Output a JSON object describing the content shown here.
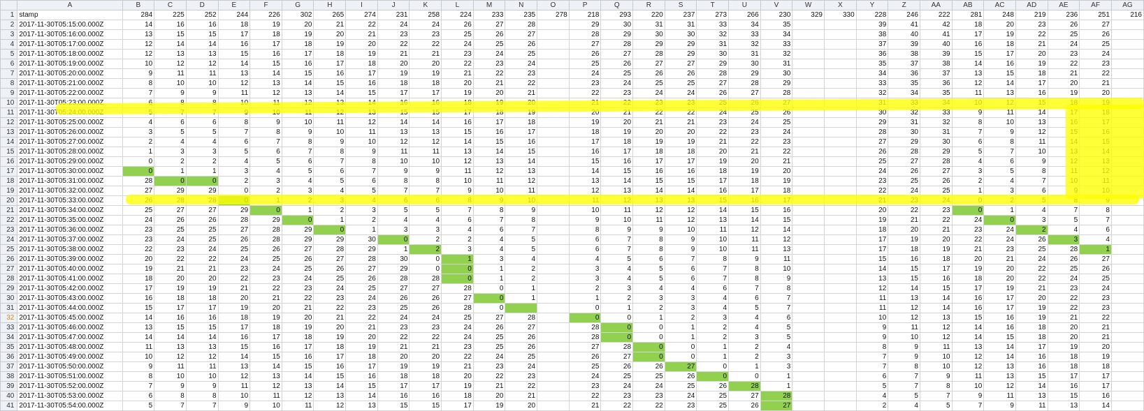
{
  "colors": {
    "highlight": "#ffff00",
    "green": "#92d050",
    "header_bg": "#eef1f5",
    "grid": "#d4d4d4",
    "selected_row_num": "#d28a1b"
  },
  "columns": [
    "A",
    "B",
    "C",
    "D",
    "E",
    "F",
    "G",
    "H",
    "I",
    "J",
    "K",
    "L",
    "M",
    "N",
    "O",
    "P",
    "Q",
    "R",
    "S",
    "T",
    "U",
    "V",
    "W",
    "X",
    "Y",
    "Z",
    "AA",
    "AB",
    "AC",
    "AD",
    "AE",
    "AF",
    "AG"
  ],
  "selected_row": 32,
  "rows": [
    [
      "stamp",
      "284",
      "225",
      "252",
      "244",
      "226",
      "302",
      "265",
      "274",
      "231",
      "258",
      "224",
      "233",
      "235",
      "278",
      "218",
      "293",
      "220",
      "237",
      "273",
      "266",
      "230",
      "329",
      "330",
      "228",
      "246",
      "222",
      "281",
      "248",
      "219",
      "236",
      "251",
      "216"
    ],
    [
      "2017-11-30T05:15:00.000Z",
      "14",
      "16",
      "16",
      "18",
      "19",
      "20",
      "21",
      "22",
      "24",
      "24",
      "26",
      "27",
      "28",
      "",
      "29",
      "30",
      "31",
      "31",
      "33",
      "34",
      "35",
      "",
      "",
      "39",
      "41",
      "42",
      "18",
      "20",
      "23",
      "26",
      "27",
      ""
    ],
    [
      "2017-11-30T05:16:00.000Z",
      "13",
      "15",
      "15",
      "17",
      "18",
      "19",
      "20",
      "21",
      "23",
      "23",
      "25",
      "26",
      "27",
      "",
      "28",
      "29",
      "30",
      "30",
      "32",
      "33",
      "34",
      "",
      "",
      "38",
      "40",
      "41",
      "17",
      "19",
      "22",
      "25",
      "26",
      ""
    ],
    [
      "2017-11-30T05:17:00.000Z",
      "12",
      "14",
      "14",
      "16",
      "17",
      "18",
      "19",
      "20",
      "22",
      "22",
      "24",
      "25",
      "26",
      "",
      "27",
      "28",
      "29",
      "29",
      "31",
      "32",
      "33",
      "",
      "",
      "37",
      "39",
      "40",
      "16",
      "18",
      "21",
      "24",
      "25",
      ""
    ],
    [
      "2017-11-30T05:18:00.000Z",
      "12",
      "13",
      "13",
      "15",
      "16",
      "17",
      "18",
      "19",
      "21",
      "21",
      "23",
      "24",
      "25",
      "",
      "26",
      "27",
      "28",
      "29",
      "30",
      "31",
      "32",
      "",
      "",
      "36",
      "38",
      "39",
      "15",
      "17",
      "20",
      "23",
      "24",
      ""
    ],
    [
      "2017-11-30T05:19:00.000Z",
      "10",
      "12",
      "12",
      "14",
      "15",
      "16",
      "17",
      "18",
      "20",
      "20",
      "22",
      "23",
      "24",
      "",
      "25",
      "26",
      "27",
      "27",
      "29",
      "30",
      "31",
      "",
      "",
      "35",
      "37",
      "38",
      "14",
      "16",
      "19",
      "22",
      "23",
      ""
    ],
    [
      "2017-11-30T05:20:00.000Z",
      "9",
      "11",
      "11",
      "13",
      "14",
      "15",
      "16",
      "17",
      "19",
      "19",
      "21",
      "22",
      "23",
      "",
      "24",
      "25",
      "26",
      "26",
      "28",
      "29",
      "30",
      "",
      "",
      "34",
      "36",
      "37",
      "13",
      "15",
      "18",
      "21",
      "22",
      ""
    ],
    [
      "2017-11-30T05:21:00.000Z",
      "8",
      "10",
      "10",
      "12",
      "13",
      "14",
      "15",
      "16",
      "18",
      "18",
      "20",
      "21",
      "22",
      "",
      "23",
      "24",
      "25",
      "25",
      "27",
      "28",
      "29",
      "",
      "",
      "33",
      "35",
      "36",
      "12",
      "14",
      "17",
      "20",
      "21",
      ""
    ],
    [
      "2017-11-30T05:22:00.000Z",
      "7",
      "9",
      "9",
      "11",
      "12",
      "13",
      "14",
      "15",
      "17",
      "17",
      "19",
      "20",
      "21",
      "",
      "22",
      "23",
      "24",
      "24",
      "26",
      "27",
      "28",
      "",
      "",
      "32",
      "34",
      "35",
      "11",
      "13",
      "16",
      "19",
      "20",
      ""
    ],
    [
      "2017-11-30T05:23:00.000Z",
      "6",
      "8",
      "8",
      "10",
      "11",
      "12",
      "13",
      "14",
      "16",
      "16",
      "18",
      "19",
      "20",
      "",
      "21",
      "22",
      "23",
      "23",
      "25",
      "26",
      "27",
      "",
      "",
      "31",
      "33",
      "34",
      "10",
      "12",
      "15",
      "18",
      "19",
      ""
    ],
    [
      "2017-11-30T05:24:00.000Z",
      "5",
      "7",
      "7",
      "9",
      "10",
      "11",
      "12",
      "13",
      "15",
      "15",
      "17",
      "18",
      "19",
      "",
      "20",
      "21",
      "22",
      "22",
      "24",
      "25",
      "26",
      "",
      "",
      "30",
      "32",
      "33",
      "9",
      "11",
      "14",
      "17",
      "18",
      ""
    ],
    [
      "2017-11-30T05:25:00.000Z",
      "4",
      "6",
      "6",
      "8",
      "9",
      "10",
      "11",
      "12",
      "14",
      "14",
      "16",
      "17",
      "18",
      "",
      "19",
      "20",
      "21",
      "21",
      "23",
      "24",
      "25",
      "",
      "",
      "29",
      "31",
      "32",
      "8",
      "10",
      "13",
      "16",
      "17",
      ""
    ],
    [
      "2017-11-30T05:26:00.000Z",
      "3",
      "5",
      "5",
      "7",
      "8",
      "9",
      "10",
      "11",
      "13",
      "13",
      "15",
      "16",
      "17",
      "",
      "18",
      "19",
      "20",
      "20",
      "22",
      "23",
      "24",
      "",
      "",
      "28",
      "30",
      "31",
      "7",
      "9",
      "12",
      "15",
      "16",
      ""
    ],
    [
      "2017-11-30T05:27:00.000Z",
      "2",
      "4",
      "4",
      "6",
      "7",
      "8",
      "9",
      "10",
      "12",
      "12",
      "14",
      "15",
      "16",
      "",
      "17",
      "18",
      "19",
      "19",
      "21",
      "22",
      "23",
      "",
      "",
      "27",
      "29",
      "30",
      "6",
      "8",
      "11",
      "14",
      "15",
      ""
    ],
    [
      "2017-11-30T05:28:00.000Z",
      "1",
      "3",
      "3",
      "5",
      "6",
      "7",
      "8",
      "9",
      "11",
      "11",
      "13",
      "14",
      "15",
      "",
      "16",
      "17",
      "18",
      "18",
      "20",
      "21",
      "22",
      "",
      "",
      "26",
      "28",
      "29",
      "5",
      "7",
      "10",
      "13",
      "14",
      ""
    ],
    [
      "2017-11-30T05:29:00.000Z",
      "0",
      "2",
      "2",
      "4",
      "5",
      "6",
      "7",
      "8",
      "10",
      "10",
      "12",
      "13",
      "14",
      "",
      "15",
      "16",
      "17",
      "17",
      "19",
      "20",
      "21",
      "",
      "",
      "25",
      "27",
      "28",
      "4",
      "6",
      "9",
      "12",
      "13",
      ""
    ],
    [
      "2017-11-30T05:30:00.000Z",
      "0",
      "1",
      "1",
      "3",
      "4",
      "5",
      "6",
      "7",
      "9",
      "9",
      "11",
      "12",
      "13",
      "",
      "14",
      "15",
      "16",
      "16",
      "18",
      "19",
      "20",
      "",
      "",
      "24",
      "26",
      "27",
      "3",
      "5",
      "8",
      "11",
      "12",
      ""
    ],
    [
      "2017-11-30T05:31:00.000Z",
      "28",
      "0",
      "0",
      "2",
      "3",
      "4",
      "5",
      "6",
      "8",
      "8",
      "10",
      "11",
      "12",
      "",
      "13",
      "14",
      "15",
      "15",
      "17",
      "18",
      "19",
      "",
      "",
      "23",
      "25",
      "26",
      "2",
      "4",
      "7",
      "10",
      "11",
      ""
    ],
    [
      "2017-11-30T05:32:00.000Z",
      "27",
      "29",
      "29",
      "0",
      "2",
      "3",
      "4",
      "5",
      "7",
      "7",
      "9",
      "10",
      "11",
      "",
      "12",
      "13",
      "14",
      "14",
      "16",
      "17",
      "18",
      "",
      "",
      "22",
      "24",
      "25",
      "1",
      "3",
      "6",
      "9",
      "10",
      ""
    ],
    [
      "2017-11-30T05:33:00.000Z",
      "26",
      "28",
      "28",
      "0",
      "1",
      "2",
      "3",
      "4",
      "6",
      "6",
      "8",
      "9",
      "10",
      "",
      "11",
      "12",
      "13",
      "13",
      "15",
      "16",
      "17",
      "",
      "",
      "21",
      "23",
      "24",
      "0",
      "2",
      "5",
      "8",
      "9",
      ""
    ],
    [
      "2017-11-30T05:34:00.000Z",
      "25",
      "27",
      "27",
      "29",
      "0",
      "1",
      "2",
      "3",
      "5",
      "5",
      "7",
      "8",
      "9",
      "",
      "10",
      "11",
      "12",
      "12",
      "14",
      "15",
      "16",
      "",
      "",
      "20",
      "22",
      "23",
      "0",
      "1",
      "4",
      "7",
      "8",
      ""
    ],
    [
      "2017-11-30T05:35:00.000Z",
      "24",
      "26",
      "26",
      "28",
      "29",
      "0",
      "1",
      "2",
      "4",
      "4",
      "6",
      "7",
      "8",
      "",
      "9",
      "10",
      "11",
      "12",
      "13",
      "14",
      "15",
      "",
      "",
      "19",
      "21",
      "22",
      "24",
      "0",
      "3",
      "5",
      "7",
      ""
    ],
    [
      "2017-11-30T05:36:00.000Z",
      "23",
      "25",
      "25",
      "27",
      "28",
      "29",
      "0",
      "1",
      "3",
      "3",
      "4",
      "6",
      "7",
      "",
      "8",
      "9",
      "9",
      "10",
      "11",
      "12",
      "14",
      "",
      "",
      "18",
      "20",
      "21",
      "23",
      "24",
      "2",
      "4",
      "6",
      ""
    ],
    [
      "2017-11-30T05:37:00.000Z",
      "23",
      "24",
      "25",
      "26",
      "28",
      "29",
      "29",
      "30",
      "0",
      "2",
      "2",
      "4",
      "5",
      "",
      "6",
      "7",
      "8",
      "9",
      "10",
      "11",
      "12",
      "",
      "",
      "17",
      "19",
      "20",
      "22",
      "24",
      "26",
      "3",
      "4",
      ""
    ],
    [
      "2017-11-30T05:38:00.000Z",
      "22",
      "23",
      "24",
      "25",
      "26",
      "27",
      "28",
      "29",
      "1",
      "2",
      "3",
      "4",
      "5",
      "",
      "6",
      "7",
      "8",
      "9",
      "10",
      "11",
      "13",
      "",
      "",
      "17",
      "18",
      "19",
      "21",
      "23",
      "25",
      "28",
      "1",
      ""
    ],
    [
      "2017-11-30T05:39:00.000Z",
      "20",
      "22",
      "22",
      "24",
      "25",
      "26",
      "27",
      "28",
      "30",
      "0",
      "1",
      "3",
      "4",
      "",
      "4",
      "5",
      "6",
      "7",
      "8",
      "9",
      "11",
      "",
      "",
      "15",
      "16",
      "18",
      "20",
      "21",
      "24",
      "26",
      "27",
      ""
    ],
    [
      "2017-11-30T05:40:00.000Z",
      "19",
      "21",
      "21",
      "23",
      "24",
      "25",
      "26",
      "27",
      "29",
      "0",
      "0",
      "1",
      "2",
      "",
      "3",
      "4",
      "5",
      "6",
      "7",
      "8",
      "10",
      "",
      "",
      "14",
      "15",
      "17",
      "19",
      "20",
      "22",
      "25",
      "26",
      ""
    ],
    [
      "2017-11-30T05:41:00.000Z",
      "18",
      "20",
      "20",
      "22",
      "23",
      "24",
      "25",
      "26",
      "28",
      "28",
      "0",
      "1",
      "2",
      "",
      "3",
      "4",
      "5",
      "6",
      "7",
      "8",
      "9",
      "",
      "",
      "13",
      "15",
      "16",
      "18",
      "20",
      "22",
      "24",
      "25",
      ""
    ],
    [
      "2017-11-30T05:42:00.000Z",
      "17",
      "19",
      "19",
      "21",
      "22",
      "23",
      "24",
      "25",
      "27",
      "27",
      "28",
      "0",
      "1",
      "",
      "2",
      "3",
      "4",
      "4",
      "6",
      "7",
      "8",
      "",
      "",
      "12",
      "14",
      "15",
      "17",
      "19",
      "21",
      "23",
      "24",
      ""
    ],
    [
      "2017-11-30T05:43:00.000Z",
      "16",
      "18",
      "18",
      "20",
      "21",
      "22",
      "23",
      "24",
      "26",
      "26",
      "27",
      "0",
      "1",
      "",
      "1",
      "2",
      "3",
      "3",
      "4",
      "6",
      "7",
      "",
      "",
      "11",
      "13",
      "14",
      "16",
      "17",
      "20",
      "22",
      "23",
      ""
    ],
    [
      "2017-11-30T05:44:00.000Z",
      "15",
      "17",
      "17",
      "19",
      "20",
      "21",
      "22",
      "23",
      "25",
      "26",
      "28",
      "0",
      "",
      "",
      "0",
      "1",
      "2",
      "3",
      "4",
      "5",
      "7",
      "",
      "",
      "11",
      "12",
      "14",
      "16",
      "17",
      "19",
      "22",
      "23",
      ""
    ],
    [
      "2017-11-30T05:45:00.000Z",
      "14",
      "16",
      "16",
      "18",
      "19",
      "20",
      "21",
      "22",
      "24",
      "24",
      "25",
      "27",
      "28",
      "",
      "0",
      "0",
      "1",
      "2",
      "3",
      "4",
      "6",
      "",
      "",
      "10",
      "12",
      "13",
      "15",
      "16",
      "19",
      "21",
      "22",
      ""
    ],
    [
      "2017-11-30T05:46:00.000Z",
      "13",
      "15",
      "15",
      "17",
      "18",
      "19",
      "20",
      "21",
      "23",
      "23",
      "24",
      "26",
      "27",
      "",
      "28",
      "0",
      "0",
      "1",
      "2",
      "4",
      "5",
      "",
      "",
      "9",
      "11",
      "12",
      "14",
      "16",
      "18",
      "20",
      "21",
      ""
    ],
    [
      "2017-11-30T05:47:00.000Z",
      "14",
      "14",
      "14",
      "16",
      "17",
      "18",
      "19",
      "20",
      "22",
      "22",
      "24",
      "25",
      "26",
      "",
      "28",
      "0",
      "0",
      "1",
      "2",
      "3",
      "5",
      "",
      "",
      "9",
      "10",
      "12",
      "14",
      "15",
      "18",
      "20",
      "21",
      ""
    ],
    [
      "2017-11-30T05:48:00.000Z",
      "11",
      "13",
      "13",
      "15",
      "16",
      "17",
      "18",
      "19",
      "21",
      "21",
      "23",
      "25",
      "26",
      "",
      "27",
      "28",
      "0",
      "0",
      "1",
      "2",
      "4",
      "",
      "",
      "8",
      "9",
      "11",
      "13",
      "14",
      "17",
      "19",
      "20",
      ""
    ],
    [
      "2017-11-30T05:49:00.000Z",
      "10",
      "12",
      "12",
      "14",
      "15",
      "16",
      "17",
      "18",
      "20",
      "20",
      "22",
      "24",
      "25",
      "",
      "26",
      "27",
      "0",
      "0",
      "1",
      "2",
      "3",
      "",
      "",
      "7",
      "9",
      "10",
      "12",
      "14",
      "16",
      "18",
      "19",
      ""
    ],
    [
      "2017-11-30T05:50:00.000Z",
      "9",
      "11",
      "11",
      "13",
      "14",
      "15",
      "16",
      "17",
      "19",
      "19",
      "21",
      "23",
      "24",
      "",
      "25",
      "26",
      "26",
      "27",
      "0",
      "1",
      "3",
      "",
      "",
      "7",
      "8",
      "10",
      "12",
      "13",
      "16",
      "18",
      "18",
      ""
    ],
    [
      "2017-11-30T05:51:00.000Z",
      "8",
      "10",
      "10",
      "12",
      "13",
      "14",
      "15",
      "16",
      "18",
      "18",
      "20",
      "22",
      "23",
      "",
      "24",
      "25",
      "25",
      "26",
      "0",
      "0",
      "1",
      "",
      "",
      "6",
      "7",
      "9",
      "11",
      "13",
      "15",
      "17",
      "17",
      ""
    ],
    [
      "2017-11-30T05:52:00.000Z",
      "7",
      "9",
      "9",
      "11",
      "12",
      "13",
      "14",
      "15",
      "17",
      "17",
      "19",
      "21",
      "22",
      "",
      "23",
      "24",
      "24",
      "25",
      "26",
      "28",
      "1",
      "",
      "",
      "5",
      "7",
      "8",
      "10",
      "12",
      "14",
      "16",
      "17",
      ""
    ],
    [
      "2017-11-30T05:53:00.000Z",
      "6",
      "8",
      "8",
      "10",
      "11",
      "12",
      "13",
      "14",
      "16",
      "16",
      "18",
      "20",
      "21",
      "",
      "22",
      "23",
      "23",
      "24",
      "25",
      "27",
      "28",
      "",
      "",
      "4",
      "5",
      "7",
      "9",
      "11",
      "13",
      "15",
      "16",
      ""
    ],
    [
      "2017-11-30T05:54:00.000Z",
      "5",
      "7",
      "7",
      "9",
      "10",
      "11",
      "12",
      "13",
      "15",
      "15",
      "17",
      "19",
      "20",
      "",
      "21",
      "22",
      "22",
      "23",
      "25",
      "26",
      "27",
      "",
      "",
      "2",
      "4",
      "5",
      "7",
      "9",
      "11",
      "13",
      "14",
      ""
    ]
  ],
  "green_cells": [
    [
      17,
      1
    ],
    [
      18,
      2
    ],
    [
      18,
      3
    ],
    [
      20,
      4
    ],
    [
      21,
      5
    ],
    [
      22,
      6
    ],
    [
      23,
      7
    ],
    [
      24,
      9
    ],
    [
      25,
      10
    ],
    [
      26,
      11
    ],
    [
      27,
      11
    ],
    [
      28,
      11
    ],
    [
      30,
      12
    ],
    [
      31,
      13
    ],
    [
      32,
      15
    ],
    [
      33,
      16
    ],
    [
      34,
      16
    ],
    [
      35,
      17
    ],
    [
      36,
      17
    ],
    [
      37,
      18
    ],
    [
      38,
      19
    ],
    [
      39,
      20
    ],
    [
      40,
      21
    ],
    [
      41,
      21
    ],
    [
      21,
      27
    ],
    [
      22,
      28
    ],
    [
      23,
      29
    ],
    [
      24,
      30
    ],
    [
      25,
      31
    ]
  ]
}
